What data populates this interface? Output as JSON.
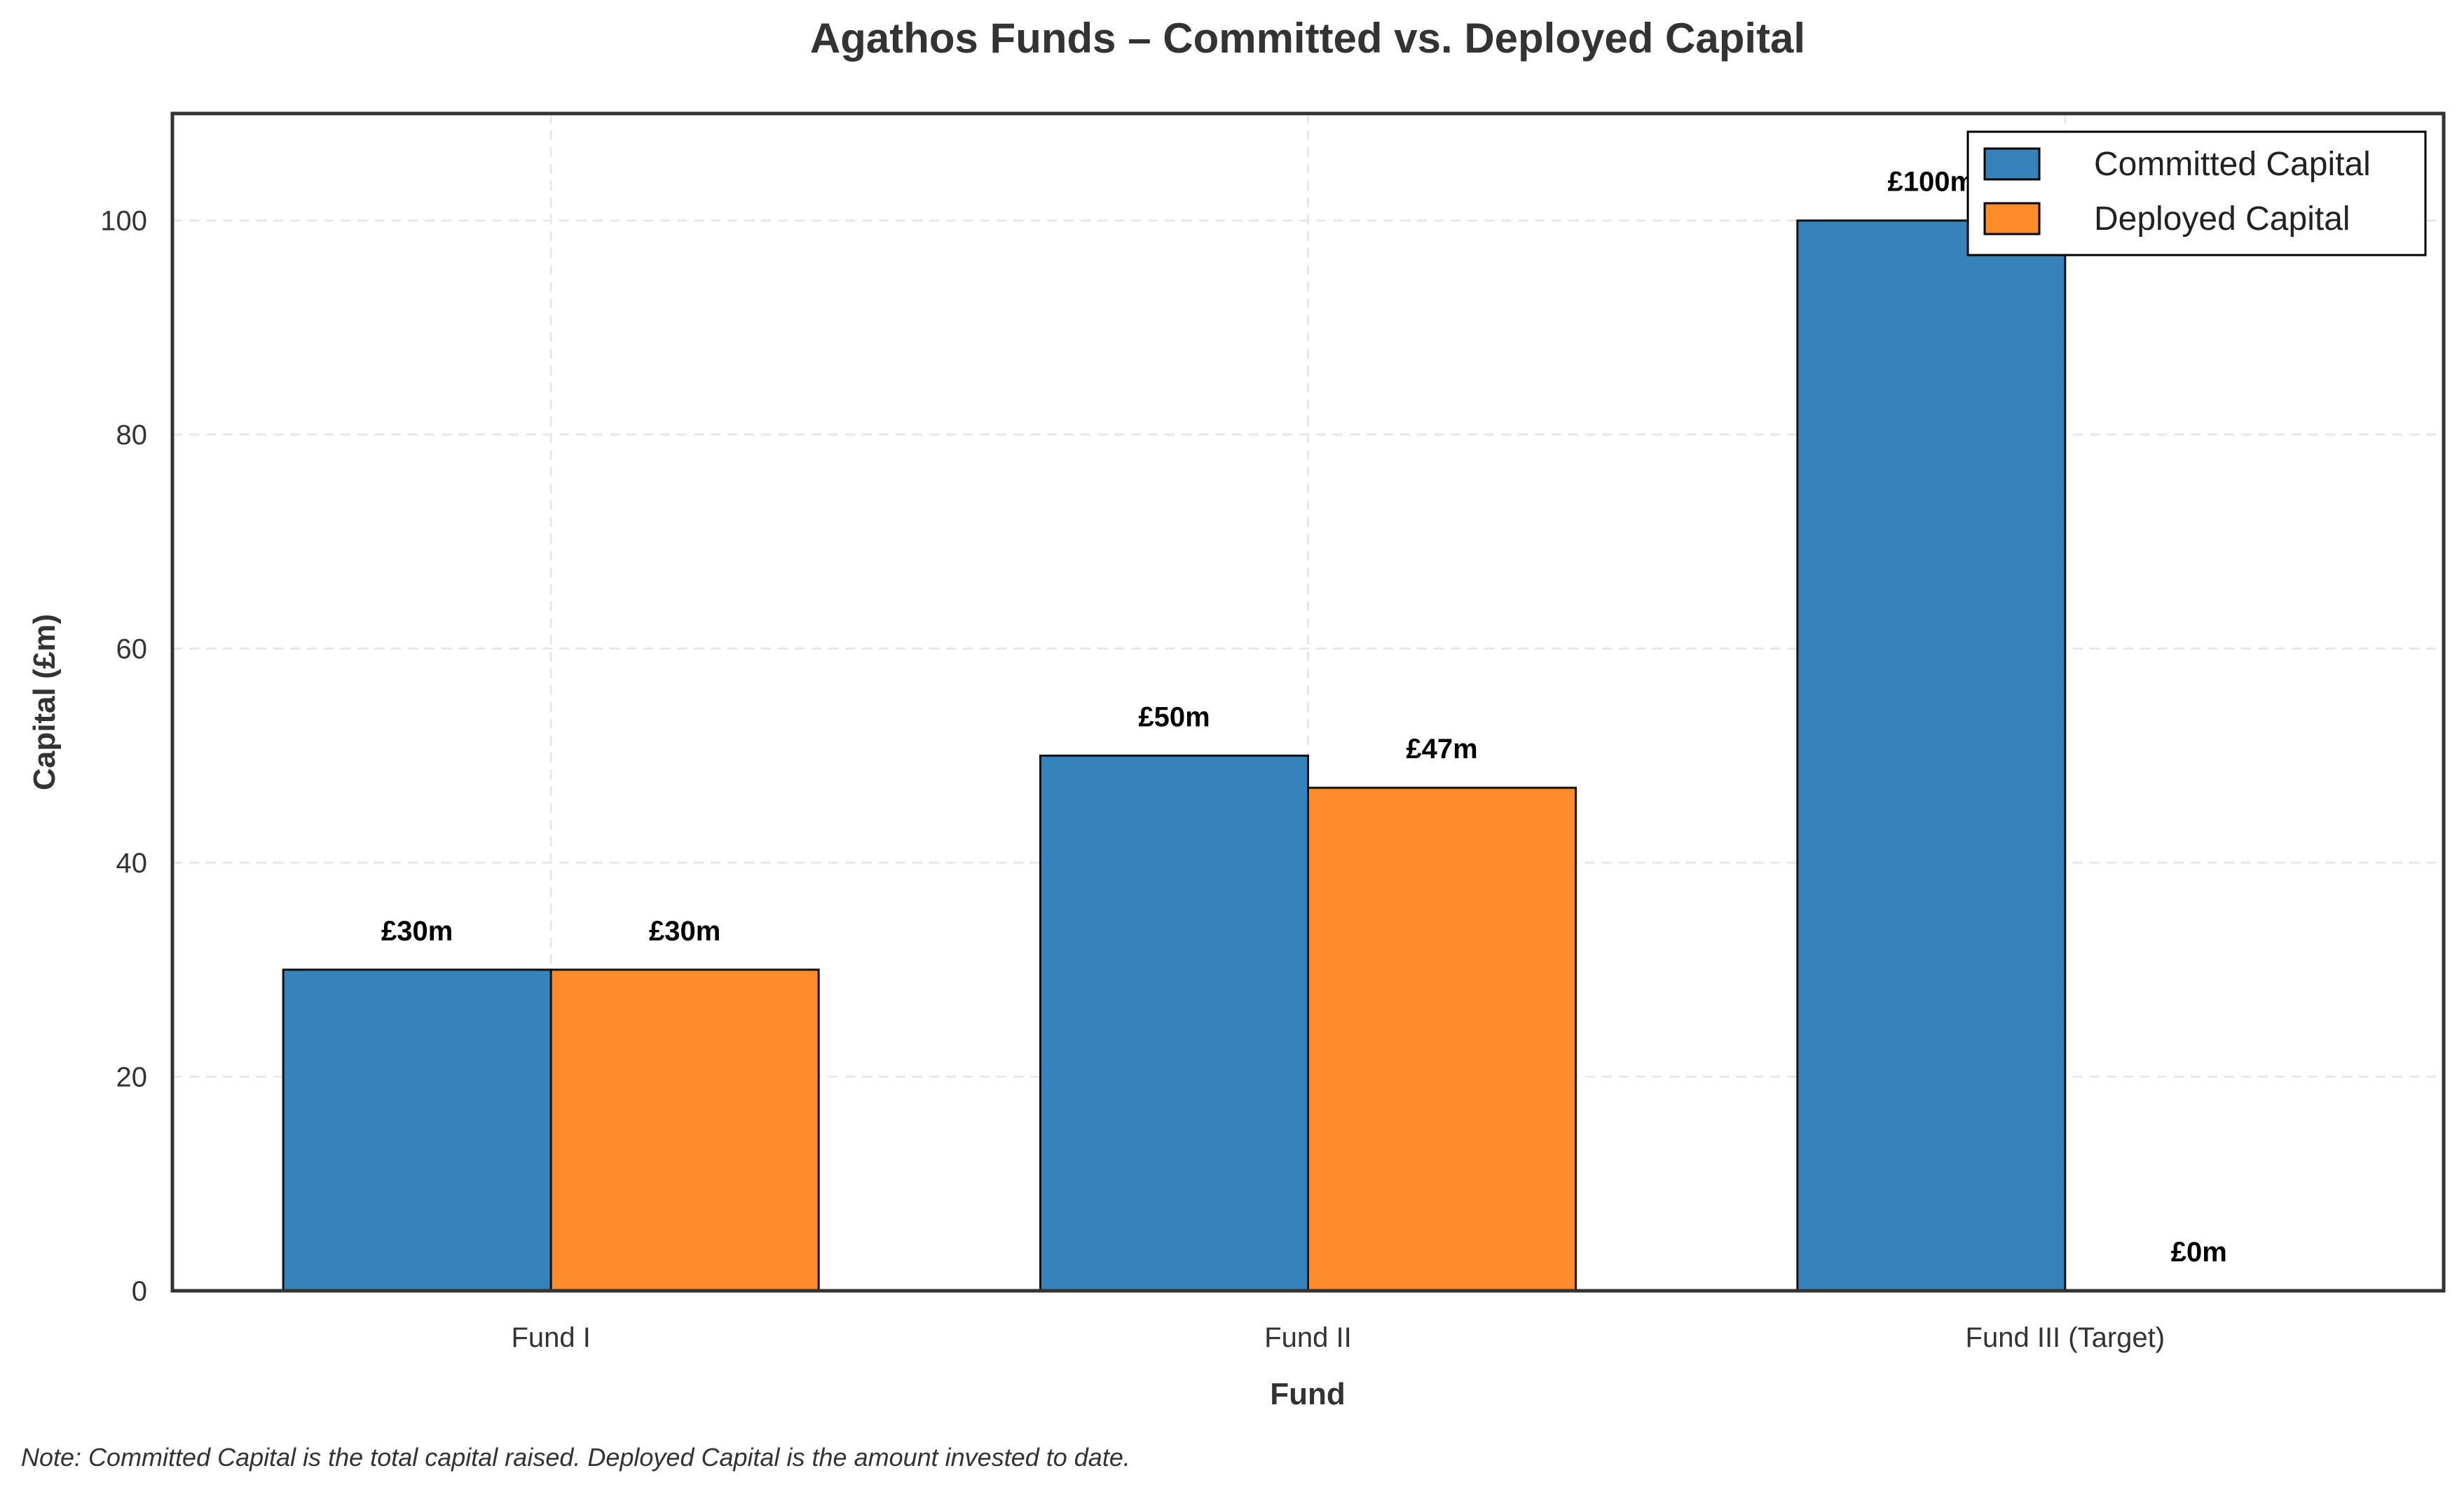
{
  "chart_data": {
    "type": "bar",
    "title": "Agathos Funds – Committed vs. Deployed Capital",
    "xlabel": "Fund",
    "ylabel": "Capital (£m)",
    "categories": [
      "Fund I",
      "Fund II",
      "Fund III (Target)"
    ],
    "series": [
      {
        "name": "Committed Capital",
        "values": [
          30,
          50,
          100
        ],
        "labels": [
          "£30m",
          "£50m",
          "£100m"
        ],
        "color": "#3683bb"
      },
      {
        "name": "Deployed Capital",
        "values": [
          30,
          47,
          0
        ],
        "labels": [
          "£30m",
          "£47m",
          "£0m"
        ],
        "color": "#ff8c2a"
      }
    ],
    "ylim": [
      0,
      110
    ],
    "yticks": [
      0,
      20,
      40,
      60,
      80,
      100
    ],
    "grid": true,
    "legend_position": "top-right",
    "note": "Note: Committed Capital is the total capital raised. Deployed Capital is the amount invested to date."
  }
}
